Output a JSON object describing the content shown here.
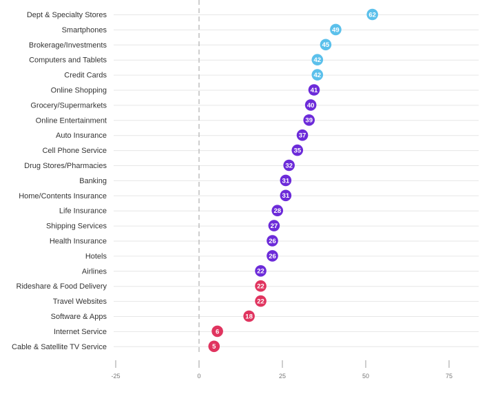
{
  "chart_data": {
    "type": "scatter",
    "orientation": "horizontal-dot",
    "title": "",
    "xlabel": "",
    "ylabel": "",
    "xlim": [
      -25,
      85
    ],
    "x_ticks": [
      -25,
      0,
      25,
      50,
      75
    ],
    "x_tick_labels": [
      "-25",
      "0",
      "25",
      "50",
      "75"
    ],
    "reference_line": 0,
    "grid": "horizontal",
    "colors": {
      "high": "#5bc0eb",
      "mid": "#6c2bd9",
      "low": "#e0345f"
    },
    "points": [
      {
        "category": "Dept & Specialty Stores",
        "value": 62,
        "x": 52,
        "group": "high"
      },
      {
        "category": "Smartphones",
        "value": 49,
        "x": 41,
        "group": "high"
      },
      {
        "category": "Brokerage/Investments",
        "value": 45,
        "x": 38,
        "group": "high"
      },
      {
        "category": "Computers and Tablets",
        "value": 42,
        "x": 35.5,
        "group": "high"
      },
      {
        "category": "Credit Cards",
        "value": 42,
        "x": 35.5,
        "group": "high"
      },
      {
        "category": "Online Shopping",
        "value": 41,
        "x": 34.5,
        "group": "mid"
      },
      {
        "category": "Grocery/Supermarkets",
        "value": 40,
        "x": 33.5,
        "group": "mid"
      },
      {
        "category": "Online Entertainment",
        "value": 39,
        "x": 33,
        "group": "mid"
      },
      {
        "category": "Auto Insurance",
        "value": 37,
        "x": 31,
        "group": "mid"
      },
      {
        "category": "Cell Phone Service",
        "value": 35,
        "x": 29.5,
        "group": "mid"
      },
      {
        "category": "Drug Stores/Pharmacies",
        "value": 32,
        "x": 27,
        "group": "mid"
      },
      {
        "category": "Banking",
        "value": 31,
        "x": 26,
        "group": "mid"
      },
      {
        "category": "Home/Contents Insurance",
        "value": 31,
        "x": 26,
        "group": "mid"
      },
      {
        "category": "Life Insurance",
        "value": 28,
        "x": 23.5,
        "group": "mid"
      },
      {
        "category": "Shipping Services",
        "value": 27,
        "x": 22.5,
        "group": "mid"
      },
      {
        "category": "Health Insurance",
        "value": 26,
        "x": 22,
        "group": "mid"
      },
      {
        "category": "Hotels",
        "value": 26,
        "x": 22,
        "group": "mid"
      },
      {
        "category": "Airlines",
        "value": 22,
        "x": 18.5,
        "group": "mid"
      },
      {
        "category": "Rideshare & Food Delivery",
        "value": 22,
        "x": 18.5,
        "group": "low"
      },
      {
        "category": "Travel Websites",
        "value": 22,
        "x": 18.5,
        "group": "low"
      },
      {
        "category": "Software & Apps",
        "value": 18,
        "x": 15,
        "group": "low"
      },
      {
        "category": "Internet Service",
        "value": 6,
        "x": 5.5,
        "group": "low"
      },
      {
        "category": "Cable & Satellite TV Service",
        "value": 5,
        "x": 4.5,
        "group": "low"
      }
    ]
  }
}
